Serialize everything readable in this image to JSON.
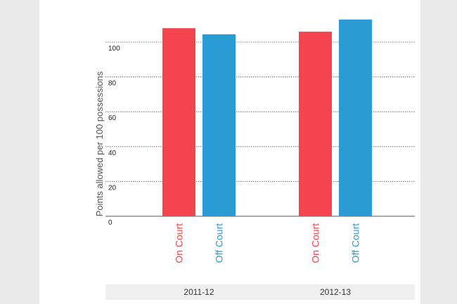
{
  "chart_data": {
    "type": "bar",
    "title": "",
    "xlabel": "",
    "ylabel": "Points allowed per 100 possessions",
    "ylim": [
      0,
      120
    ],
    "yticks": [
      0,
      20,
      40,
      60,
      80,
      100
    ],
    "categories": [
      "2011-12",
      "2012-13"
    ],
    "series": [
      {
        "name": "On Court",
        "color": "#f4444e",
        "values": [
          108,
          106
        ]
      },
      {
        "name": "Off Court",
        "color": "#2b9bd6",
        "values": [
          104.5,
          113
        ]
      }
    ],
    "grid": true,
    "legend": "bar labels below each bar"
  }
}
